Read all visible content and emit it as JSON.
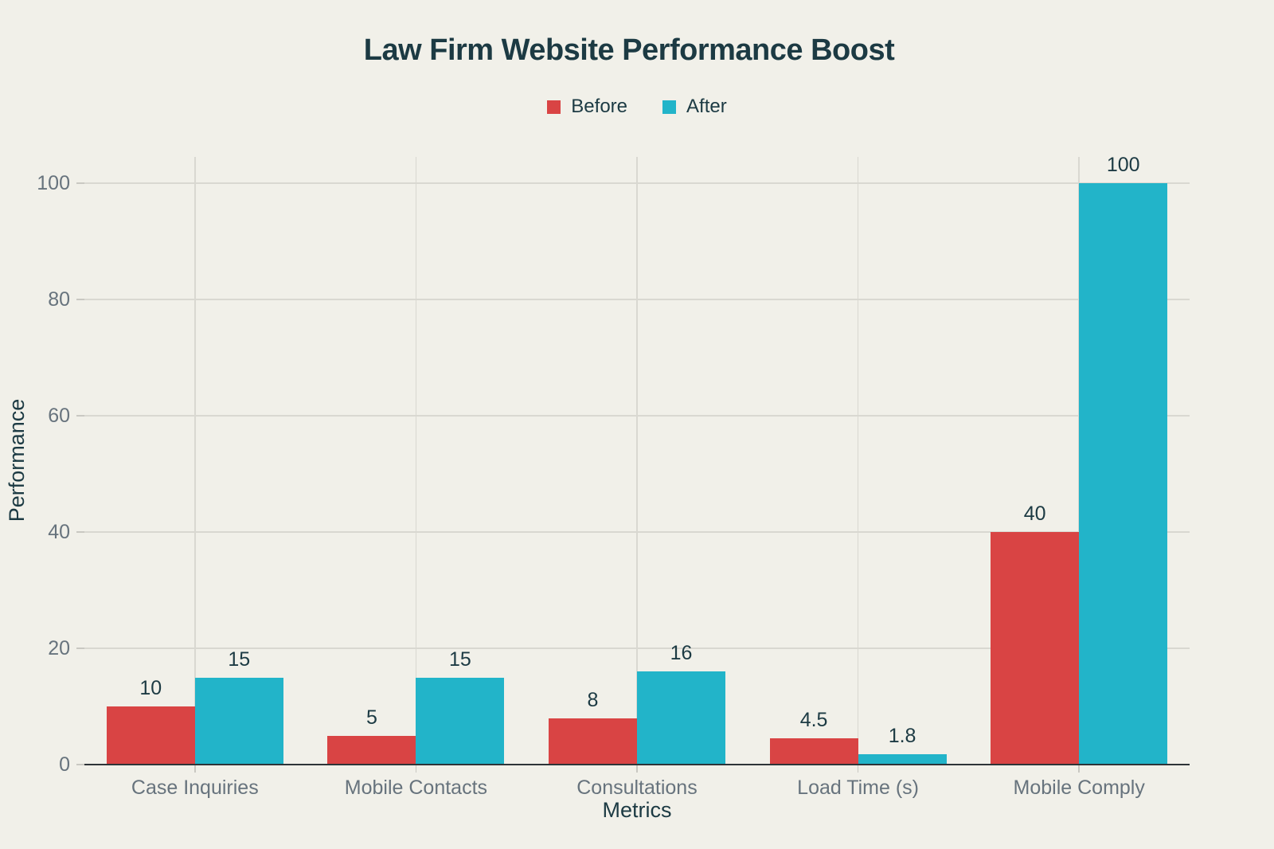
{
  "title": "Law Firm Website Performance Boost",
  "legend": {
    "items": [
      {
        "label": "Before",
        "color": "#d94444"
      },
      {
        "label": "After",
        "color": "#22b4c9"
      }
    ]
  },
  "chart_data": {
    "type": "bar",
    "title": "Law Firm Website Performance Boost",
    "categories": [
      "Case Inquiries",
      "Mobile Contacts",
      "Consultations",
      "Load Time (s)",
      "Mobile Comply"
    ],
    "series": [
      {
        "name": "Before",
        "color": "#d94444",
        "values": [
          10,
          5,
          8,
          4.5,
          40
        ]
      },
      {
        "name": "After",
        "color": "#22b4c9",
        "values": [
          15,
          15,
          16,
          1.8,
          100
        ]
      }
    ],
    "xlabel": "Metrics",
    "ylabel": "Performance",
    "ylim": [
      0,
      105
    ],
    "yticks": [
      0,
      20,
      40,
      60,
      80,
      100
    ],
    "grid": true,
    "legend_position": "top",
    "value_labels": true
  },
  "colors": {
    "background": "#f1f0e9",
    "dark_text": "#1c3a43",
    "muted_text": "#67737d",
    "gridline": "#d9d8d1",
    "tick": "#c9c8c2",
    "baseline": "#2e3438",
    "before_bar": "#d94444",
    "after_bar": "#22b4c9"
  }
}
